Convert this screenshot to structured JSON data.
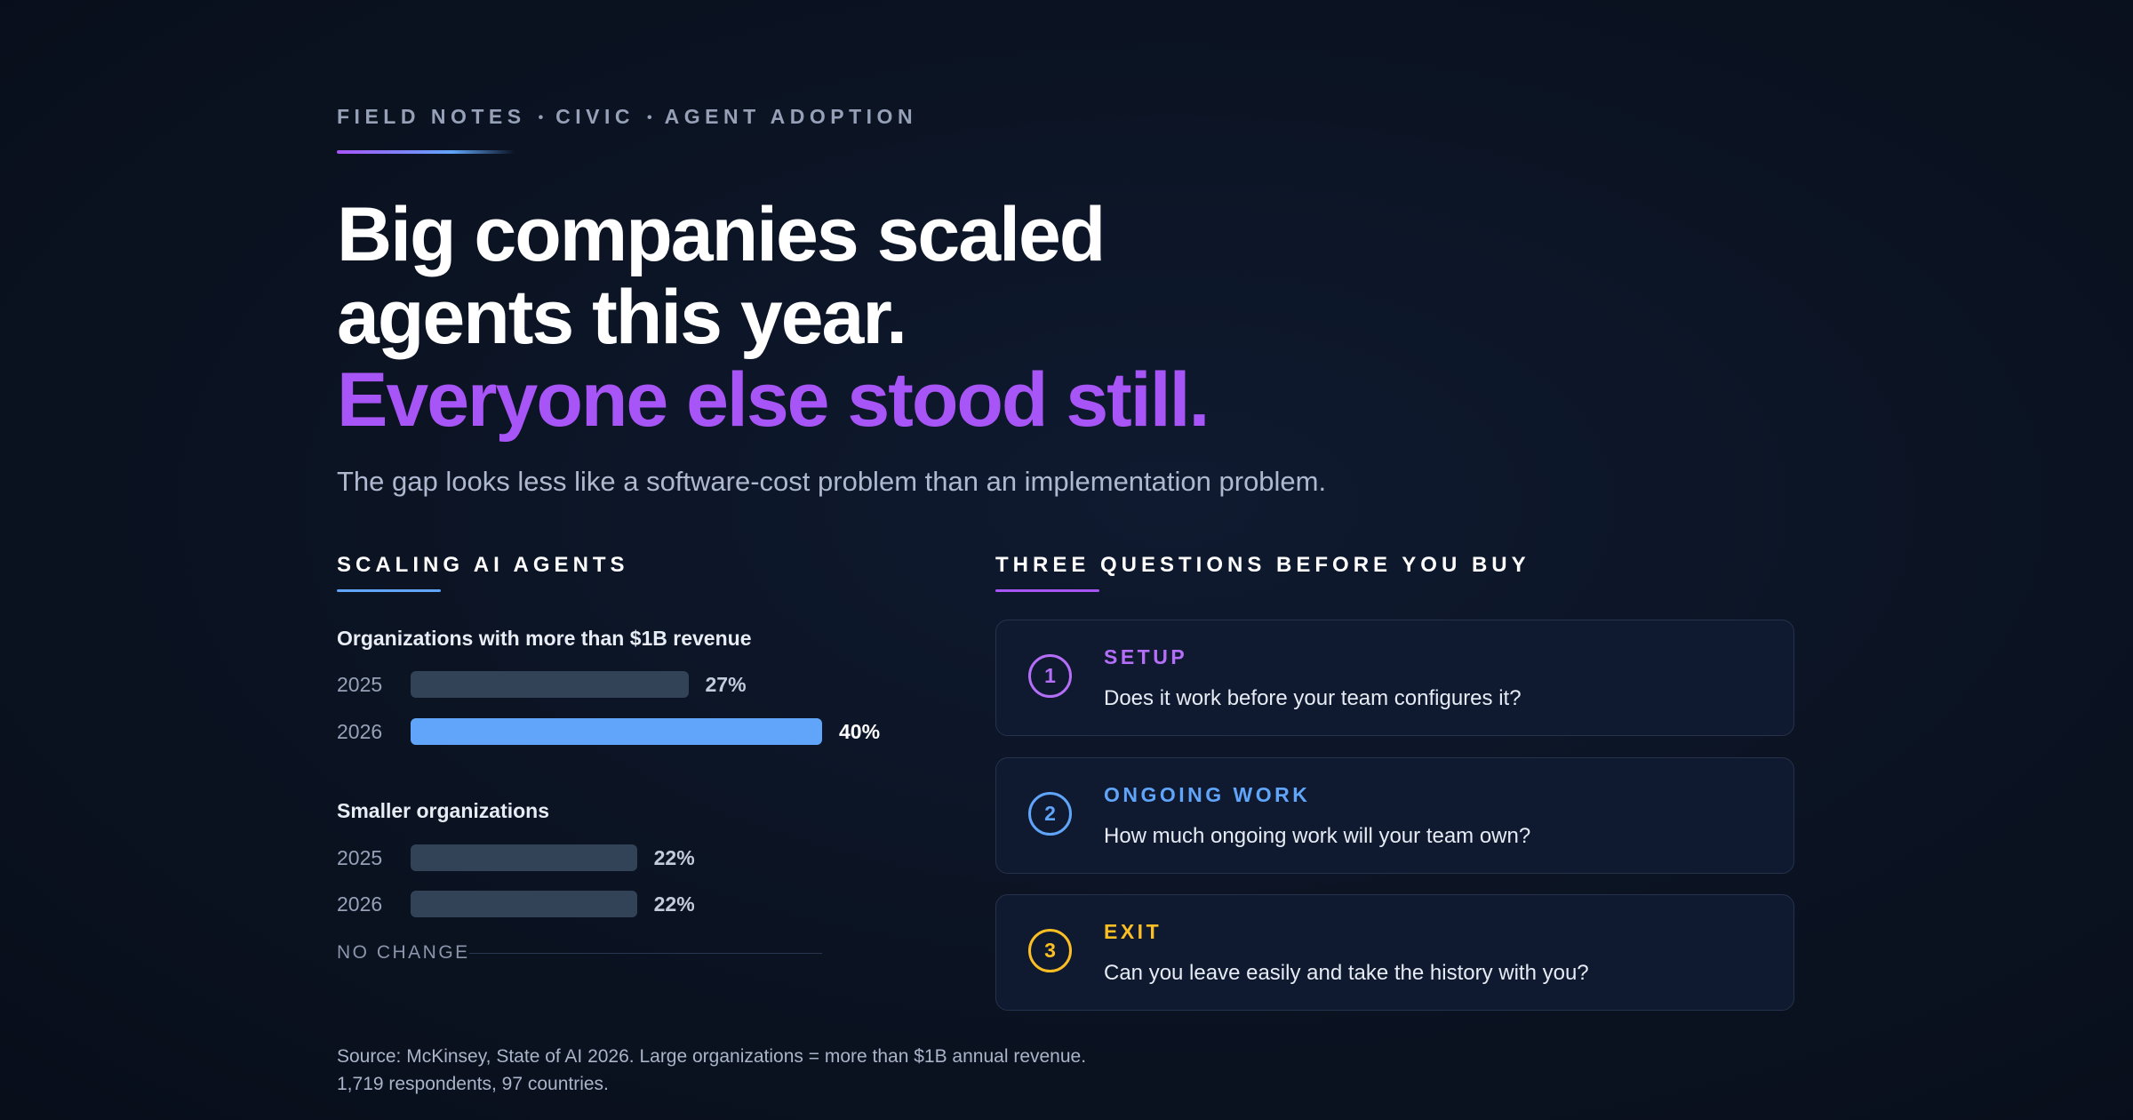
{
  "kicker": {
    "items": [
      "FIELD NOTES",
      "CIVIC",
      "AGENT ADOPTION"
    ],
    "separator": "•"
  },
  "headline": {
    "line1": "Big companies scaled",
    "line2": "agents this year.",
    "line3": "Everyone else stood still."
  },
  "subtitle": "The gap looks less like a software-cost problem than an implementation problem.",
  "colors": {
    "accent_purple": "#a855f7",
    "accent_blue": "#60a5fa",
    "accent_amber": "#fbbf24",
    "bar_muted": "#334357"
  },
  "chart_data": {
    "type": "bar",
    "orientation": "horizontal",
    "title": "SCALING AI AGENTS",
    "xlim": [
      0,
      40
    ],
    "grid": false,
    "groups": [
      {
        "name": "Organizations with more than $1B revenue",
        "bars": [
          {
            "year": "2025",
            "value": 27,
            "label": "27%",
            "highlight": false
          },
          {
            "year": "2026",
            "value": 40,
            "label": "40%",
            "highlight": true
          }
        ]
      },
      {
        "name": "Smaller organizations",
        "bars": [
          {
            "year": "2025",
            "value": 22,
            "label": "22%",
            "highlight": false
          },
          {
            "year": "2026",
            "value": 22,
            "label": "22%",
            "highlight": false
          }
        ]
      }
    ],
    "annotation": "NO CHANGE"
  },
  "questions": {
    "title": "THREE QUESTIONS BEFORE YOU BUY",
    "items": [
      {
        "number": "1",
        "label": "SETUP",
        "text": "Does it work before your team configures it?",
        "color": "#b46ef8"
      },
      {
        "number": "2",
        "label": "ONGOING WORK",
        "text": "How much ongoing work will your team own?",
        "color": "#60a5fa"
      },
      {
        "number": "3",
        "label": "EXIT",
        "text": "Can you leave easily and take the history with you?",
        "color": "#fbbf24"
      }
    ]
  },
  "source": {
    "line1": "Source: McKinsey, State of AI 2026. Large organizations = more than $1B annual revenue.",
    "line2": "1,719 respondents, 97 countries."
  }
}
